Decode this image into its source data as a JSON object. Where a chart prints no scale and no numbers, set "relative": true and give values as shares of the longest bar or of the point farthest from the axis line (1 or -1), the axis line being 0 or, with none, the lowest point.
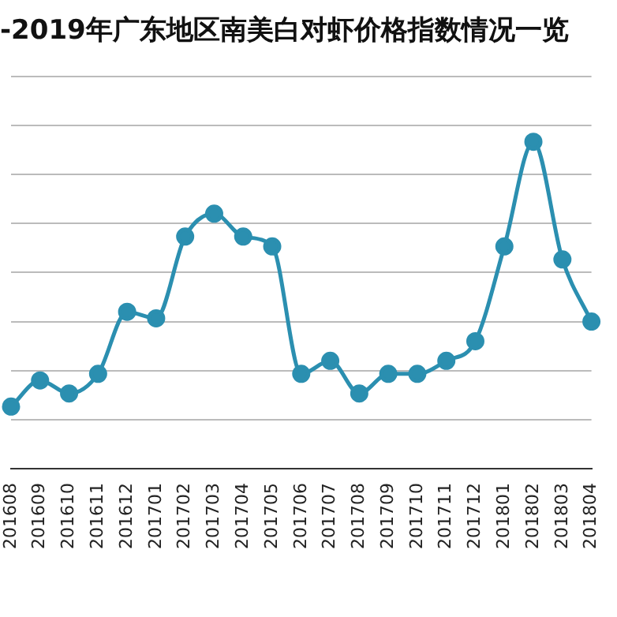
{
  "chart_data": {
    "type": "line",
    "title": "-2019年广东地区南美白对虾价格指数情况一览",
    "relative": true,
    "grid": "y",
    "marker": "circle",
    "legend": false,
    "categories": [
      "201608",
      "201609",
      "201610",
      "201611",
      "201612",
      "201701",
      "201702",
      "201703",
      "201704",
      "201705",
      "201706",
      "201707",
      "201708",
      "201709",
      "201710",
      "201711",
      "201712",
      "201801",
      "201802",
      "201803",
      "201804"
    ],
    "series": [
      {
        "color": "#2b8fb0",
        "values": [
          0.19,
          0.27,
          0.23,
          0.29,
          0.48,
          0.46,
          0.71,
          0.78,
          0.71,
          0.68,
          0.29,
          0.33,
          0.23,
          0.29,
          0.29,
          0.33,
          0.39,
          0.68,
          1,
          0.64,
          0.45
        ]
      }
    ]
  }
}
